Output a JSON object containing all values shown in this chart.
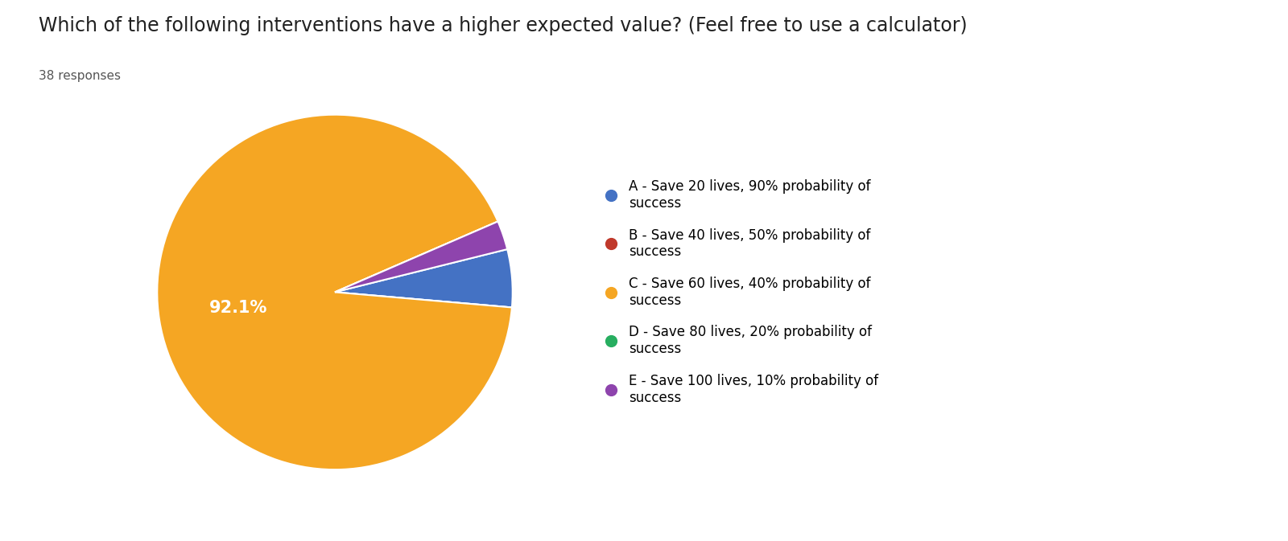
{
  "title": "Which of the following interventions have a higher expected value? (Feel free to use a calculator)",
  "subtitle": "38 responses",
  "slices": [
    2,
    0,
    35,
    0,
    1
  ],
  "labels": [
    "A",
    "B",
    "C",
    "D",
    "E"
  ],
  "colors": [
    "#4472C4",
    "#C0392B",
    "#F5A623",
    "#27AE60",
    "#8E44AD"
  ],
  "legend_labels": [
    "A - Save 20 lives, 90% probability of\nsuccess",
    "B - Save 40 lives, 50% probability of\nsuccess",
    "C - Save 60 lives, 40% probability of\nsuccess",
    "D - Save 80 lives, 20% probability of\nsuccess",
    "E - Save 100 lives, 10% probability of\nsuccess"
  ],
  "background_color": "#ffffff",
  "title_fontsize": 17,
  "subtitle_fontsize": 11,
  "legend_fontsize": 12,
  "pct_fontsize": 15
}
